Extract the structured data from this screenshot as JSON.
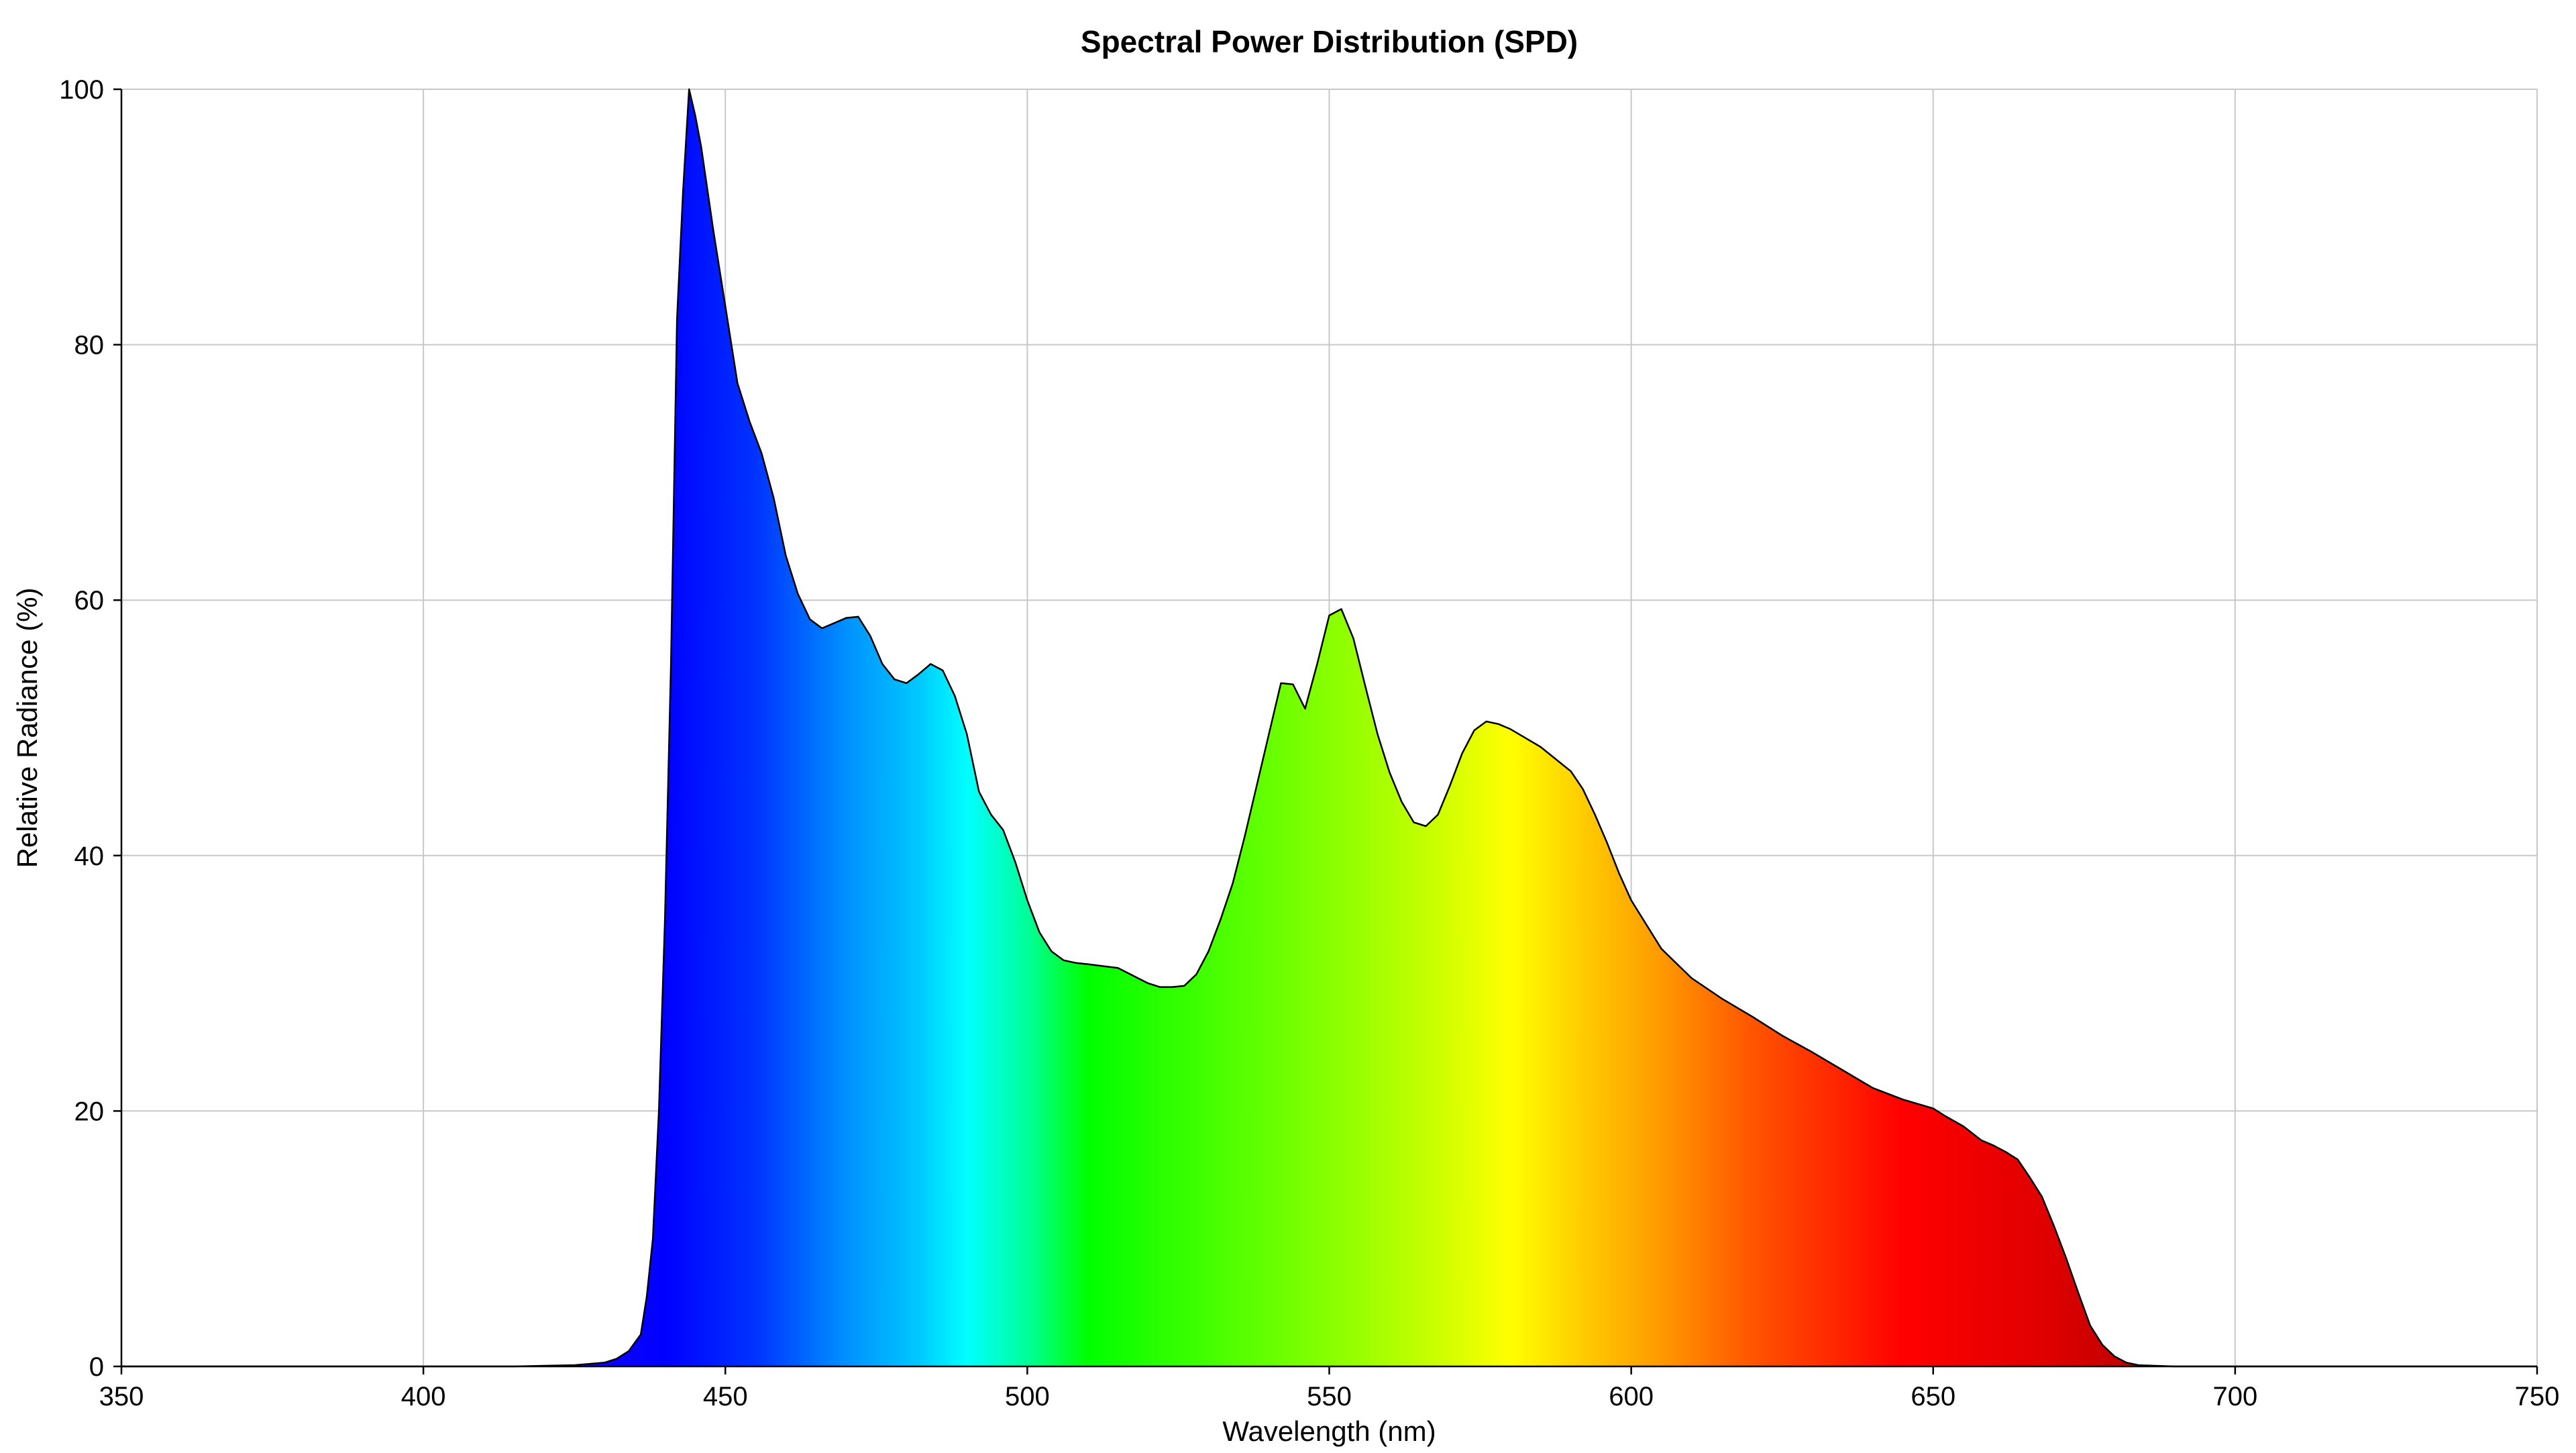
{
  "chart_data": {
    "type": "area",
    "title": "Spectral Power Distribution (SPD)",
    "xlabel": "Wavelength (nm)",
    "ylabel": "Relative Radiance (%)",
    "xlim": [
      350,
      750
    ],
    "ylim": [
      0,
      100
    ],
    "x_ticks": [
      "350",
      "400",
      "450",
      "500",
      "550",
      "600",
      "650",
      "700",
      "750"
    ],
    "y_ticks": [
      "0",
      "20",
      "40",
      "60",
      "80",
      "100"
    ],
    "grid": true,
    "legend": "none",
    "fill": "visible-spectrum gradient by wavelength",
    "outline_color": "#000000",
    "series": [
      {
        "x": [
          350,
          400,
          415,
          420,
          425,
          430,
          432,
          434,
          436,
          437,
          438,
          439,
          440,
          441,
          442,
          443,
          444,
          445,
          446,
          448,
          450,
          452,
          454,
          456,
          458,
          460,
          462,
          464,
          466,
          468,
          470,
          472,
          474,
          476,
          478,
          480,
          482,
          484,
          486,
          488,
          490,
          492,
          494,
          496,
          498,
          500,
          502,
          504,
          506,
          508,
          510,
          515,
          520,
          522,
          524,
          526,
          528,
          530,
          532,
          534,
          536,
          538,
          540,
          542,
          544,
          546,
          548,
          550,
          552,
          554,
          556,
          558,
          560,
          562,
          564,
          566,
          568,
          570,
          572,
          574,
          576,
          578,
          580,
          585,
          590,
          592,
          594,
          596,
          598,
          600,
          605,
          610,
          615,
          620,
          625,
          630,
          635,
          640,
          645,
          650,
          652,
          655,
          658,
          660,
          662,
          664,
          666,
          668,
          670,
          672,
          674,
          676,
          678,
          680,
          682,
          684,
          690,
          750
        ],
        "y": [
          0,
          0,
          0,
          0.05,
          0.1,
          0.3,
          0.6,
          1.2,
          2.5,
          5.5,
          10,
          20,
          35,
          55,
          82,
          92,
          100,
          98,
          95.5,
          89,
          83,
          77,
          74,
          71.5,
          68,
          63.5,
          60.5,
          58.5,
          57.8,
          58.2,
          58.6,
          58.7,
          57.2,
          55,
          53.8,
          53.5,
          54.2,
          55,
          54.5,
          52.5,
          49.5,
          45,
          43.2,
          42,
          39.5,
          36.5,
          34,
          32.5,
          31.8,
          31.6,
          31.5,
          31.2,
          30,
          29.7,
          29.7,
          29.8,
          30.7,
          32.5,
          35,
          37.8,
          41.5,
          45.5,
          49.5,
          53.5,
          53.4,
          51.5,
          55,
          58.8,
          59.3,
          57,
          53.2,
          49.5,
          46.5,
          44.2,
          42.6,
          42.3,
          43.2,
          45.5,
          48,
          49.8,
          50.5,
          50.3,
          49.9,
          48.5,
          46.6,
          45.2,
          43.2,
          41,
          38.6,
          36.5,
          32.7,
          30.4,
          28.8,
          27.4,
          25.9,
          24.6,
          23.2,
          21.8,
          20.9,
          20.2,
          19.6,
          18.8,
          17.7,
          17.3,
          16.8,
          16.2,
          14.8,
          13.3,
          11,
          8.5,
          5.8,
          3.2,
          1.7,
          0.8,
          0.3,
          0.1,
          0,
          0
        ]
      }
    ]
  }
}
